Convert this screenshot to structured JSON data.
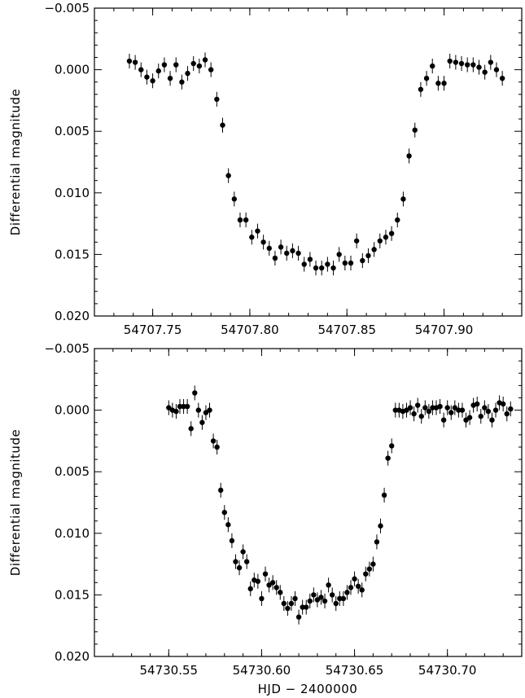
{
  "chart_data": [
    {
      "type": "scatter",
      "title": "",
      "xlabel": "",
      "ylabel": "Differential magnitude",
      "ylim": [
        0.02,
        -0.005
      ],
      "y_inverted": true,
      "xlim": [
        54707.72,
        54707.94
      ],
      "x_ticks": [
        54707.75,
        54707.8,
        54707.85,
        54707.9
      ],
      "x_tick_labels": [
        "54707.75",
        "54707.80",
        "54707.85",
        "54707.90"
      ],
      "y_ticks": [
        -0.005,
        0.0,
        0.005,
        0.01,
        0.015,
        0.02
      ],
      "y_tick_labels": [
        "−0.005",
        "0.000",
        "0.005",
        "0.010",
        "0.015",
        "0.020"
      ],
      "grid": false,
      "errorbar": 0.0006,
      "series": [
        {
          "x": [
            54707.738,
            54707.741,
            54707.744,
            54707.747,
            54707.75,
            54707.753,
            54707.756,
            54707.759,
            54707.762,
            54707.765,
            54707.768,
            54707.771,
            54707.774,
            54707.777,
            54707.78,
            54707.783,
            54707.786,
            54707.789,
            54707.792,
            54707.795,
            54707.798,
            54707.801,
            54707.804,
            54707.807,
            54707.81,
            54707.813,
            54707.816,
            54707.819,
            54707.822,
            54707.825,
            54707.828,
            54707.831,
            54707.834,
            54707.837,
            54707.84,
            54707.843,
            54707.846,
            54707.849,
            54707.852,
            54707.855,
            54707.858,
            54707.861,
            54707.864,
            54707.867,
            54707.87,
            54707.873,
            54707.876,
            54707.879,
            54707.882,
            54707.885,
            54707.888,
            54707.891,
            54707.894,
            54707.897,
            54707.9,
            54707.903,
            54707.906,
            54707.909,
            54707.912,
            54707.915,
            54707.918,
            54707.921,
            54707.924,
            54707.927,
            54707.93
          ],
          "y": [
            -0.0007,
            -0.0006,
            0.0,
            0.0006,
            0.0009,
            0.0001,
            -0.0004,
            0.0007,
            -0.0004,
            0.001,
            0.0003,
            -0.0005,
            -0.0003,
            -0.0008,
            0.0,
            0.0024,
            0.0045,
            0.0086,
            0.0105,
            0.0122,
            0.0122,
            0.0136,
            0.0131,
            0.014,
            0.0145,
            0.0153,
            0.0144,
            0.0149,
            0.0147,
            0.0149,
            0.0158,
            0.0154,
            0.0161,
            0.0161,
            0.0158,
            0.0161,
            0.015,
            0.0157,
            0.0157,
            0.0139,
            0.0155,
            0.0151,
            0.0146,
            0.0139,
            0.0136,
            0.0133,
            0.0122,
            0.0105,
            0.007,
            0.0049,
            0.0016,
            0.0007,
            -0.0003,
            0.0011,
            0.0011,
            -0.0007,
            -0.0006,
            -0.0005,
            -0.0004,
            -0.0004,
            -0.0002,
            0.0002,
            -0.0006,
            0.0,
            0.0007
          ]
        }
      ]
    },
    {
      "type": "scatter",
      "title": "",
      "xlabel": "HJD − 2400000",
      "ylabel": "Differential magnitude",
      "ylim": [
        0.02,
        -0.005
      ],
      "y_inverted": true,
      "xlim": [
        54730.51,
        54730.74
      ],
      "x_ticks": [
        54730.55,
        54730.6,
        54730.65,
        54730.7
      ],
      "x_tick_labels": [
        "54730.55",
        "54730.60",
        "54730.65",
        "54730.70"
      ],
      "y_ticks": [
        -0.005,
        0.0,
        0.005,
        0.01,
        0.015,
        0.02
      ],
      "y_tick_labels": [
        "−0.005",
        "0.000",
        "0.005",
        "0.010",
        "0.015",
        "0.020"
      ],
      "grid": false,
      "errorbar": 0.0006,
      "series": [
        {
          "x": [
            54730.55,
            54730.552,
            54730.554,
            54730.556,
            54730.558,
            54730.56,
            54730.562,
            54730.564,
            54730.566,
            54730.568,
            54730.57,
            54730.572,
            54730.574,
            54730.576,
            54730.578,
            54730.58,
            54730.582,
            54730.584,
            54730.586,
            54730.588,
            54730.59,
            54730.592,
            54730.594,
            54730.596,
            54730.598,
            54730.6,
            54730.602,
            54730.604,
            54730.606,
            54730.608,
            54730.61,
            54730.612,
            54730.614,
            54730.616,
            54730.618,
            54730.62,
            54730.622,
            54730.624,
            54730.626,
            54730.628,
            54730.63,
            54730.632,
            54730.634,
            54730.636,
            54730.638,
            54730.64,
            54730.642,
            54730.644,
            54730.646,
            54730.648,
            54730.65,
            54730.652,
            54730.654,
            54730.656,
            54730.658,
            54730.66,
            54730.662,
            54730.664,
            54730.666,
            54730.668,
            54730.67,
            54730.672,
            54730.674,
            54730.676,
            54730.678,
            54730.68,
            54730.682,
            54730.684,
            54730.686,
            54730.688,
            54730.69,
            54730.692,
            54730.694,
            54730.696,
            54730.698,
            54730.7,
            54730.702,
            54730.704,
            54730.706,
            54730.708,
            54730.71,
            54730.712,
            54730.714,
            54730.716,
            54730.718,
            54730.72,
            54730.722,
            54730.724,
            54730.726,
            54730.728,
            54730.73,
            54730.732,
            54730.734
          ],
          "y": [
            -0.0002,
            0.0,
            0.0001,
            -0.0003,
            -0.0003,
            -0.0003,
            0.0015,
            -0.0014,
            0.0,
            0.001,
            0.0002,
            0.0,
            0.0025,
            0.003,
            0.0065,
            0.0083,
            0.0093,
            0.0106,
            0.0123,
            0.0128,
            0.0115,
            0.0123,
            0.0145,
            0.0138,
            0.0139,
            0.0153,
            0.0133,
            0.0142,
            0.014,
            0.0144,
            0.0148,
            0.0157,
            0.0161,
            0.0157,
            0.0153,
            0.0168,
            0.016,
            0.016,
            0.0155,
            0.015,
            0.0154,
            0.0152,
            0.0155,
            0.0142,
            0.015,
            0.0157,
            0.0153,
            0.0153,
            0.0148,
            0.0144,
            0.0137,
            0.0143,
            0.0146,
            0.0133,
            0.0129,
            0.0125,
            0.0107,
            0.0094,
            0.0069,
            0.0039,
            0.0029,
            0.0,
            0.0,
            0.0001,
            0.0,
            -0.0002,
            0.0003,
            -0.0004,
            0.0005,
            -0.0002,
            0.0001,
            -0.0002,
            -0.0002,
            -0.0003,
            0.0008,
            -0.0002,
            0.0002,
            -0.0002,
            0.0,
            0.0,
            0.0008,
            0.0006,
            -0.0004,
            -0.0005,
            0.0005,
            -0.0002,
            0.0001,
            0.0008,
            0.0,
            -0.0006,
            -0.0005,
            0.0003,
            -0.0001
          ]
        }
      ]
    }
  ]
}
